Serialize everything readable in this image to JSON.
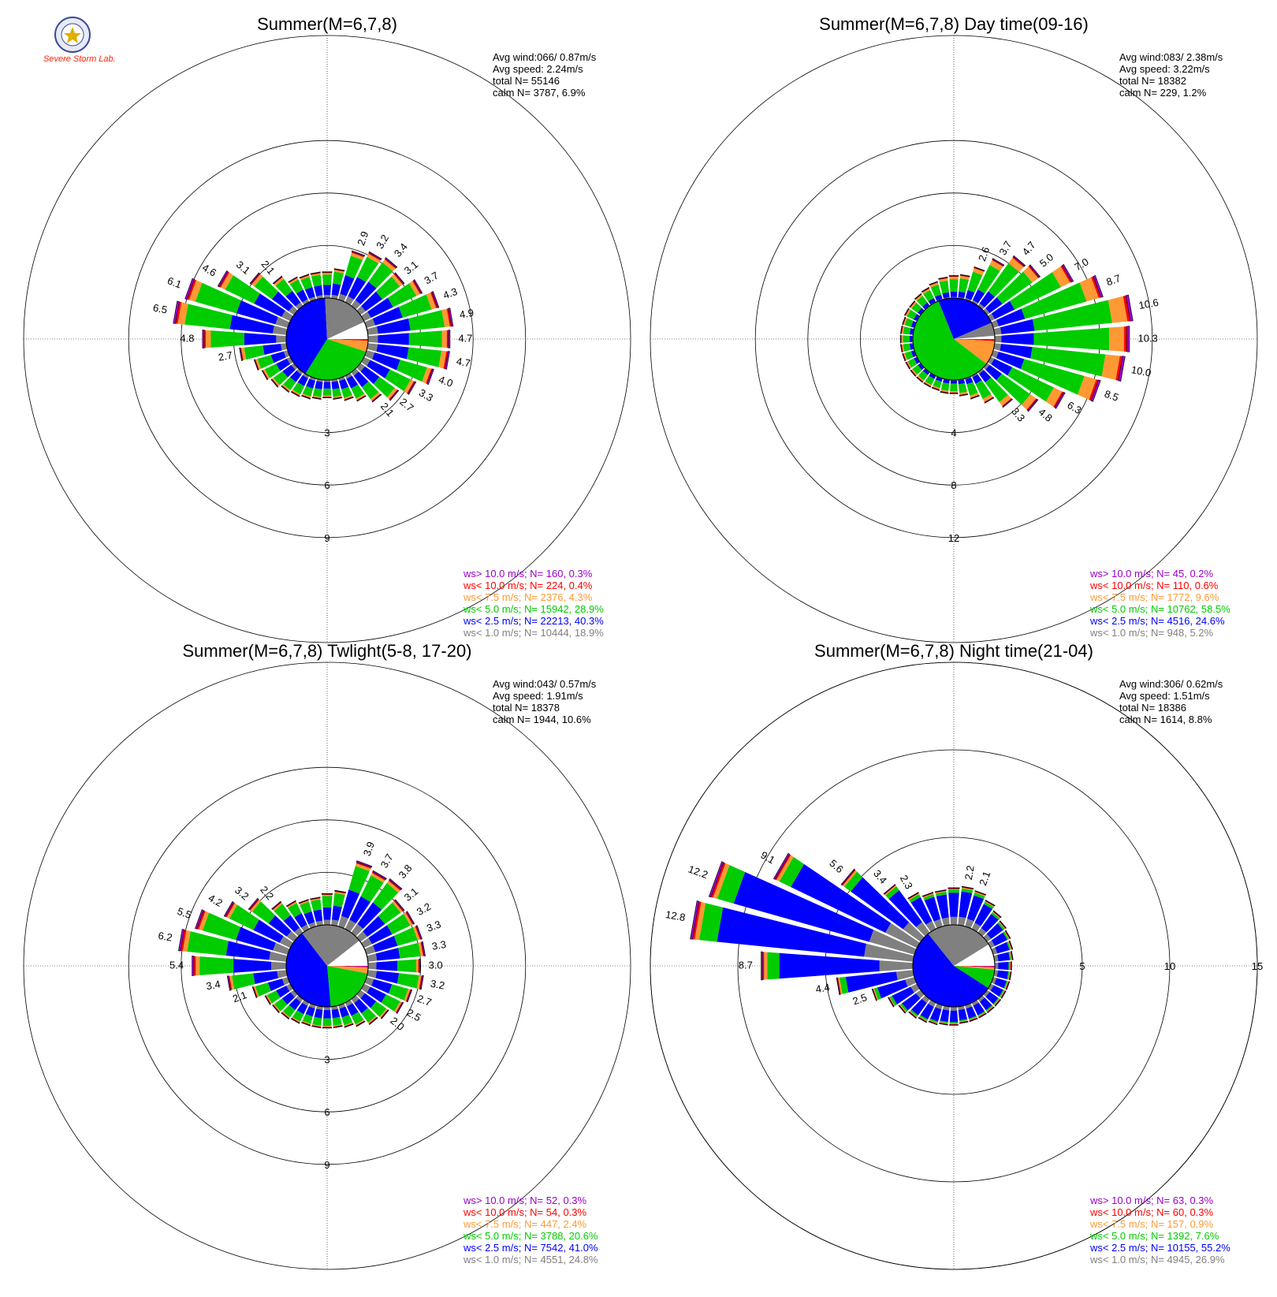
{
  "logo": {
    "text": "Severe Storm Lab.",
    "seal_color": "#3a4a9a"
  },
  "colors": {
    "gt10": "#9900cc",
    "lt10": "#ff0000",
    "lt7_5": "#ff9933",
    "lt5": "#00cc00",
    "lt2_5": "#0000ff",
    "lt1": "#808080",
    "calm": "#ffffff"
  },
  "chart_data": [
    {
      "type": "windrose",
      "title": "Summer(M=6,7,8)",
      "stats": {
        "avg_wind": "Avg wind:066/ 0.87m/s",
        "avg_speed": "Avg speed: 2.24m/s",
        "total": "total N=      55146",
        "calm": "calm N=   3787,   6.9%"
      },
      "rmax": 15,
      "rings": [
        3,
        6,
        9
      ],
      "ring_labels": [
        "3",
        "6",
        "9"
      ],
      "bar_labels": [
        {
          "dir": 20,
          "label": "2.9"
        },
        {
          "dir": 30,
          "label": "3.2"
        },
        {
          "dir": 40,
          "label": "3.4"
        },
        {
          "dir": 50,
          "label": "3.1"
        },
        {
          "dir": 60,
          "label": "3.7"
        },
        {
          "dir": 70,
          "label": "4.3"
        },
        {
          "dir": 80,
          "label": "4.9"
        },
        {
          "dir": 90,
          "label": "4.7"
        },
        {
          "dir": 100,
          "label": "4.7"
        },
        {
          "dir": 110,
          "label": "4.0"
        },
        {
          "dir": 120,
          "label": "3.3"
        },
        {
          "dir": 130,
          "label": "2.7"
        },
        {
          "dir": 140,
          "label": "2.1"
        },
        {
          "dir": 260,
          "label": "2.7"
        },
        {
          "dir": 270,
          "label": "4.8"
        },
        {
          "dir": 280,
          "label": "6.5"
        },
        {
          "dir": 290,
          "label": "6.1"
        },
        {
          "dir": 300,
          "label": "4.6"
        },
        {
          "dir": 310,
          "label": "3.1"
        },
        {
          "dir": 320,
          "label": "2.1"
        }
      ],
      "directions": [
        10,
        20,
        30,
        40,
        50,
        60,
        70,
        80,
        90,
        100,
        110,
        120,
        130,
        140,
        150,
        160,
        170,
        180,
        190,
        200,
        210,
        220,
        230,
        240,
        250,
        260,
        270,
        280,
        290,
        300,
        310,
        320,
        330,
        340,
        350,
        360
      ],
      "totals": [
        1.7,
        2.9,
        3.2,
        3.4,
        3.1,
        3.7,
        4.3,
        4.9,
        4.7,
        4.7,
        4.0,
        3.3,
        2.7,
        2.1,
        1.6,
        1.3,
        1.1,
        1.0,
        1.1,
        1.2,
        1.3,
        1.4,
        1.6,
        1.8,
        2.0,
        2.7,
        4.8,
        6.5,
        6.1,
        4.6,
        3.1,
        2.1,
        1.6,
        1.5,
        1.5,
        1.5
      ],
      "pie": [
        0.189,
        0.403,
        0.289,
        0.043,
        0.004,
        0.003
      ],
      "legend": [
        {
          "text": "ws> 10.0 m/s; N=    160,  0.3%",
          "color": "#9900cc"
        },
        {
          "text": "ws< 10.0 m/s; N=    224,  0.4%",
          "color": "#ff0000"
        },
        {
          "text": "ws<  7.5 m/s; N=  2376,  4.3%",
          "color": "#ff9933"
        },
        {
          "text": "ws<  5.0 m/s; N= 15942, 28.9%",
          "color": "#00cc00"
        },
        {
          "text": "ws<  2.5 m/s; N= 22213, 40.3%",
          "color": "#0000ff"
        },
        {
          "text": "ws<  1.0 m/s; N= 10444, 18.9%",
          "color": "#808080"
        }
      ]
    },
    {
      "type": "windrose",
      "title": "Summer(M=6,7,8) Day time(09-16)",
      "stats": {
        "avg_wind": "Avg wind:083/ 2.38m/s",
        "avg_speed": "Avg speed: 3.22m/s",
        "total": "total N=      18382",
        "calm": "calm N=    229,   1.2%"
      },
      "rmax": 20,
      "rings": [
        4,
        8,
        12
      ],
      "ring_labels": [
        "4",
        "8",
        "12"
      ],
      "bar_labels": [
        {
          "dir": 20,
          "label": "2.6"
        },
        {
          "dir": 30,
          "label": "3.7"
        },
        {
          "dir": 40,
          "label": "4.7"
        },
        {
          "dir": 50,
          "label": "5.0"
        },
        {
          "dir": 60,
          "label": "7.0"
        },
        {
          "dir": 70,
          "label": "8.7"
        },
        {
          "dir": 80,
          "label": "10.6"
        },
        {
          "dir": 90,
          "label": "10.3"
        },
        {
          "dir": 100,
          "label": "10.0"
        },
        {
          "dir": 110,
          "label": "8.5"
        },
        {
          "dir": 120,
          "label": "6.3"
        },
        {
          "dir": 130,
          "label": "4.8"
        },
        {
          "dir": 140,
          "label": "3.3"
        }
      ],
      "directions": [
        10,
        20,
        30,
        40,
        50,
        60,
        70,
        80,
        90,
        100,
        110,
        120,
        130,
        140,
        150,
        160,
        170,
        180,
        190,
        200,
        210,
        220,
        230,
        240,
        250,
        260,
        270,
        280,
        290,
        300,
        310,
        320,
        330,
        340,
        350,
        360
      ],
      "totals": [
        1.8,
        2.6,
        3.7,
        4.7,
        5.0,
        7.0,
        8.7,
        10.6,
        10.3,
        10.0,
        8.5,
        6.3,
        4.8,
        3.3,
        2.3,
        1.6,
        1.2,
        1.0,
        1.0,
        0.9,
        0.9,
        0.9,
        0.9,
        0.9,
        0.9,
        0.9,
        0.9,
        0.9,
        0.9,
        1.0,
        1.0,
        1.1,
        1.2,
        1.4,
        1.6,
        1.7
      ],
      "pie": [
        0.052,
        0.246,
        0.585,
        0.096,
        0.006,
        0.002
      ],
      "legend": [
        {
          "text": "ws> 10.0 m/s; N=     45,  0.2%",
          "color": "#9900cc"
        },
        {
          "text": "ws< 10.0 m/s; N=    110,  0.6%",
          "color": "#ff0000"
        },
        {
          "text": "ws<  7.5 m/s; N=  1772,  9.6%",
          "color": "#ff9933"
        },
        {
          "text": "ws<  5.0 m/s; N= 10762, 58.5%",
          "color": "#00cc00"
        },
        {
          "text": "ws<  2.5 m/s; N=  4516, 24.6%",
          "color": "#0000ff"
        },
        {
          "text": "ws<  1.0 m/s; N=    948,  5.2%",
          "color": "#808080"
        }
      ]
    },
    {
      "type": "windrose",
      "title": "Summer(M=6,7,8) Twlight(5-8, 17-20)",
      "stats": {
        "avg_wind": "Avg wind:043/ 0.57m/s",
        "avg_speed": "Avg speed: 1.91m/s",
        "total": "total N=      18378",
        "calm": "calm N=   1944,  10.6%"
      },
      "rmax": 15,
      "rings": [
        3,
        6,
        9
      ],
      "ring_labels": [
        "3",
        "6",
        "9"
      ],
      "bar_labels": [
        {
          "dir": 20,
          "label": "3.9"
        },
        {
          "dir": 30,
          "label": "3.7"
        },
        {
          "dir": 40,
          "label": "3.8"
        },
        {
          "dir": 50,
          "label": "3.1"
        },
        {
          "dir": 60,
          "label": "3.2"
        },
        {
          "dir": 70,
          "label": "3.3"
        },
        {
          "dir": 80,
          "label": "3.3"
        },
        {
          "dir": 90,
          "label": "3.0"
        },
        {
          "dir": 100,
          "label": "3.2"
        },
        {
          "dir": 110,
          "label": "2.7"
        },
        {
          "dir": 120,
          "label": "2.5"
        },
        {
          "dir": 130,
          "label": "2.0"
        },
        {
          "dir": 250,
          "label": "2.1"
        },
        {
          "dir": 260,
          "label": "3.4"
        },
        {
          "dir": 270,
          "label": "5.4"
        },
        {
          "dir": 280,
          "label": "6.2"
        },
        {
          "dir": 290,
          "label": "5.5"
        },
        {
          "dir": 300,
          "label": "4.2"
        },
        {
          "dir": 310,
          "label": "3.2"
        },
        {
          "dir": 320,
          "label": "2.2"
        }
      ],
      "directions": [
        10,
        20,
        30,
        40,
        50,
        60,
        70,
        80,
        90,
        100,
        110,
        120,
        130,
        140,
        150,
        160,
        170,
        180,
        190,
        200,
        210,
        220,
        230,
        240,
        250,
        260,
        270,
        280,
        290,
        300,
        310,
        320,
        330,
        340,
        350,
        360
      ],
      "totals": [
        2.0,
        3.9,
        3.7,
        3.8,
        3.1,
        3.2,
        3.3,
        3.3,
        3.0,
        3.2,
        2.7,
        2.5,
        2.0,
        1.8,
        1.5,
        1.3,
        1.2,
        1.2,
        1.2,
        1.2,
        1.3,
        1.4,
        1.5,
        1.6,
        2.1,
        3.4,
        5.4,
        6.2,
        5.5,
        4.2,
        3.2,
        2.2,
        1.8,
        1.6,
        1.6,
        1.8
      ],
      "pie": [
        0.248,
        0.41,
        0.206,
        0.024,
        0.003,
        0.003
      ],
      "legend": [
        {
          "text": "ws> 10.0 m/s; N=     52,  0.3%",
          "color": "#9900cc"
        },
        {
          "text": "ws< 10.0 m/s; N=     54,  0.3%",
          "color": "#ff0000"
        },
        {
          "text": "ws<  7.5 m/s; N=    447,  2.4%",
          "color": "#ff9933"
        },
        {
          "text": "ws<  5.0 m/s; N=  3788, 20.6%",
          "color": "#00cc00"
        },
        {
          "text": "ws<  2.5 m/s; N=  7542, 41.0%",
          "color": "#0000ff"
        },
        {
          "text": "ws<  1.0 m/s; N=  4551, 24.8%",
          "color": "#808080"
        }
      ]
    },
    {
      "type": "windrose",
      "title": "Summer(M=6,7,8) Night time(21-04)",
      "stats": {
        "avg_wind": "Avg wind:306/ 0.62m/s",
        "avg_speed": "Avg speed: 1.51m/s",
        "total": "total N=      18386",
        "calm": "calm N=   1614,   8.8%"
      },
      "rmax": 15,
      "rings": [
        5,
        10,
        15
      ],
      "ring_labels": [
        "5",
        "10",
        "15"
      ],
      "ring_label_side": "east",
      "bar_labels": [
        {
          "dir": 10,
          "label": "2.2"
        },
        {
          "dir": 20,
          "label": "2.1"
        },
        {
          "dir": 250,
          "label": "2.5"
        },
        {
          "dir": 260,
          "label": "4.4"
        },
        {
          "dir": 270,
          "label": "8.7"
        },
        {
          "dir": 280,
          "label": "12.8"
        },
        {
          "dir": 290,
          "label": "12.2"
        },
        {
          "dir": 300,
          "label": "9.1"
        },
        {
          "dir": 310,
          "label": "5.6"
        },
        {
          "dir": 320,
          "label": "3.4"
        },
        {
          "dir": 330,
          "label": "2.3"
        }
      ],
      "directions": [
        10,
        20,
        30,
        40,
        50,
        60,
        70,
        80,
        90,
        100,
        110,
        120,
        130,
        140,
        150,
        160,
        170,
        180,
        190,
        200,
        210,
        220,
        230,
        240,
        250,
        260,
        270,
        280,
        290,
        300,
        310,
        320,
        330,
        340,
        350,
        360
      ],
      "totals": [
        2.2,
        2.1,
        1.8,
        1.5,
        1.3,
        1.2,
        1.1,
        1.0,
        0.9,
        0.9,
        0.9,
        0.9,
        0.9,
        0.9,
        0.9,
        0.9,
        0.9,
        1.0,
        1.0,
        1.1,
        1.2,
        1.3,
        1.5,
        1.8,
        2.5,
        4.4,
        8.7,
        12.8,
        12.2,
        9.1,
        5.6,
        3.4,
        2.3,
        2.0,
        2.0,
        2.1
      ],
      "pie": [
        0.269,
        0.552,
        0.076,
        0.009,
        0.003,
        0.003
      ],
      "legend": [
        {
          "text": "ws> 10.0 m/s; N=     63,  0.3%",
          "color": "#9900cc"
        },
        {
          "text": "ws< 10.0 m/s; N=     60,  0.3%",
          "color": "#ff0000"
        },
        {
          "text": "ws<  7.5 m/s; N=    157,  0.9%",
          "color": "#ff9933"
        },
        {
          "text": "ws<  5.0 m/s; N=  1392,  7.6%",
          "color": "#00cc00"
        },
        {
          "text": "ws<  2.5 m/s; N= 10155, 55.2%",
          "color": "#0000ff"
        },
        {
          "text": "ws<  1.0 m/s; N=  4945, 26.9%",
          "color": "#808080"
        }
      ]
    }
  ]
}
